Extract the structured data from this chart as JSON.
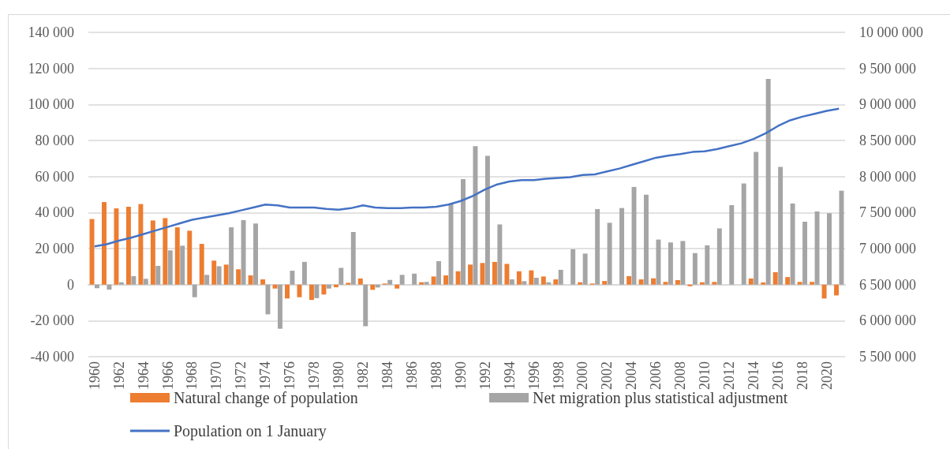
{
  "chart_data": {
    "type": "bar",
    "categories": [
      "1960",
      null,
      "1962",
      null,
      "1964",
      null,
      "1966",
      null,
      "1968",
      null,
      "1970",
      null,
      "1972",
      null,
      "1974",
      null,
      "1976",
      null,
      "1978",
      null,
      "1980",
      null,
      "1982",
      null,
      "1984",
      null,
      "1986",
      null,
      "1988",
      null,
      "1990",
      null,
      "1992",
      null,
      "1994",
      null,
      "1996",
      null,
      "1998",
      null,
      "2000",
      null,
      "2002",
      null,
      "2004",
      null,
      "2006",
      null,
      "2008",
      null,
      "2010",
      null,
      "2012",
      null,
      "2014",
      null,
      "2016",
      null,
      "2018",
      null,
      "2020",
      null
    ],
    "series": [
      {
        "name": "Natural change of population",
        "color": "#ed7d31",
        "values": [
          36400,
          45800,
          42300,
          43200,
          44700,
          35600,
          36900,
          31800,
          29900,
          22600,
          13300,
          11100,
          8500,
          5100,
          2900,
          -2200,
          -7700,
          -7000,
          -8500,
          -5500,
          -1500,
          1000,
          3400,
          -2900,
          600,
          -2200,
          0,
          1300,
          4500,
          5100,
          7400,
          11100,
          12000,
          12600,
          11500,
          7400,
          7900,
          4500,
          2900,
          0,
          1300,
          600,
          2000,
          0,
          4700,
          2900,
          3500,
          1500,
          2500,
          -900,
          1300,
          1500,
          0,
          0,
          3400,
          1200,
          6900,
          4200,
          1500,
          1500,
          -7700,
          -6000
        ]
      },
      {
        "name": "Net migration plus statistical adjustment",
        "color": "#a5a5a5",
        "values": [
          -2000,
          -2800,
          1300,
          4700,
          3200,
          10400,
          19000,
          21600,
          -7000,
          5400,
          10200,
          31800,
          35800,
          33900,
          -16500,
          -24500,
          7700,
          12600,
          -7500,
          -2200,
          9300,
          29200,
          -23100,
          -1600,
          2600,
          5400,
          6100,
          1500,
          13000,
          45000,
          58500,
          76800,
          71500,
          33400,
          2900,
          1900,
          3800,
          1300,
          8200,
          19600,
          17200,
          41900,
          34300,
          42500,
          54200,
          49900,
          25000,
          23400,
          24200,
          17500,
          21800,
          31200,
          44100,
          56100,
          73600,
          114200,
          65300,
          45000,
          34900,
          40600,
          39600,
          52100
        ]
      },
      {
        "name": "Population on 1 January",
        "color": "#4472c4",
        "type": "line",
        "axis": "y2",
        "values": [
          7030000,
          7060000,
          7110000,
          7150000,
          7200000,
          7250000,
          7300000,
          7350000,
          7400000,
          7430000,
          7460000,
          7490000,
          7530000,
          7570000,
          7610000,
          7600000,
          7570000,
          7570000,
          7570000,
          7550000,
          7540000,
          7560000,
          7600000,
          7570000,
          7560000,
          7560000,
          7570000,
          7570000,
          7580000,
          7610000,
          7660000,
          7730000,
          7820000,
          7890000,
          7930000,
          7950000,
          7950000,
          7970000,
          7980000,
          7990000,
          8020000,
          8030000,
          8070000,
          8110000,
          8160000,
          8210000,
          8260000,
          8290000,
          8310000,
          8340000,
          8350000,
          8380000,
          8420000,
          8460000,
          8520000,
          8600000,
          8700000,
          8780000,
          8830000,
          8870000,
          8910000,
          8940000
        ]
      }
    ],
    "ylim": [
      -40000,
      140000
    ],
    "yticks": [
      {
        "value": -40000,
        "label": "-40 000"
      },
      {
        "value": -20000,
        "label": "-20 000"
      },
      0,
      {
        "value": 20000,
        "label": "20 000"
      },
      {
        "value": 40000,
        "label": "40 000"
      },
      {
        "value": 60000,
        "label": "60 000"
      },
      {
        "value": 80000,
        "label": "80 000"
      },
      {
        "value": 100000,
        "label": "100 000"
      },
      {
        "value": 120000,
        "label": "120 000"
      },
      {
        "value": 140000,
        "label": "140 000"
      }
    ],
    "y2lim": [
      5500000,
      10000000
    ],
    "y2ticks": [
      {
        "value": 5500000,
        "label": "5 500 000"
      },
      {
        "value": 6000000,
        "label": "6 000 000"
      },
      {
        "value": 6500000,
        "label": "6 500 000"
      },
      {
        "value": 7000000,
        "label": "7 000 000"
      },
      {
        "value": 7500000,
        "label": "7 500 000"
      },
      {
        "value": 8000000,
        "label": "8 000 000"
      },
      {
        "value": 8500000,
        "label": "8 500 000"
      },
      {
        "value": 9000000,
        "label": "9 000 000"
      },
      {
        "value": 9500000,
        "label": "9 500 000"
      },
      {
        "value": 10000000,
        "label": "10 000 000"
      }
    ],
    "grid": "y",
    "legend": "bottom",
    "marker": "none",
    "line_style": "solid"
  }
}
